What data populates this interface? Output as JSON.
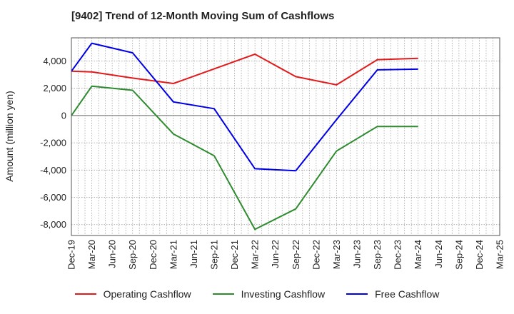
{
  "chart_data": {
    "type": "line",
    "title": "[9402]  Trend of 12-Month Moving Sum of Cashflows",
    "ylabel": "Amount (million yen)",
    "xlabel": "",
    "ylim": [
      -8800,
      5700
    ],
    "yticks": [
      -8000,
      -6000,
      -4000,
      -2000,
      0,
      2000,
      4000
    ],
    "ytick_labels": [
      "-8,000",
      "-6,000",
      "-4,000",
      "-2,000",
      "0",
      "2,000",
      "4,000"
    ],
    "categories": [
      "Dec-19",
      "Mar-20",
      "Jun-20",
      "Sep-20",
      "Dec-20",
      "Mar-21",
      "Jun-21",
      "Sep-21",
      "Dec-21",
      "Mar-22",
      "Jun-22",
      "Sep-22",
      "Dec-22",
      "Mar-23",
      "Jun-23",
      "Sep-23",
      "Dec-23",
      "Mar-24",
      "Jun-24",
      "Sep-24",
      "Dec-24",
      "Mar-25"
    ],
    "grid": true,
    "legend_position": "bottom",
    "series": [
      {
        "name": "Operating Cashflow",
        "color": "#e31a1c",
        "points": [
          [
            0,
            3250
          ],
          [
            1,
            3200
          ],
          [
            3,
            2750
          ],
          [
            5,
            2350
          ],
          [
            9,
            4500
          ],
          [
            11,
            2850
          ],
          [
            13,
            2250
          ],
          [
            15,
            4100
          ],
          [
            17,
            4200
          ]
        ]
      },
      {
        "name": "Investing Cashflow",
        "color": "#2e8b2e",
        "points": [
          [
            0,
            0
          ],
          [
            1,
            2150
          ],
          [
            3,
            1850
          ],
          [
            5,
            -1350
          ],
          [
            7,
            -2950
          ],
          [
            9,
            -8350
          ],
          [
            11,
            -6850
          ],
          [
            13,
            -2600
          ],
          [
            15,
            -800
          ],
          [
            17,
            -800
          ]
        ]
      },
      {
        "name": "Free Cashflow",
        "color": "#0000e6",
        "points": [
          [
            0,
            3250
          ],
          [
            1,
            5300
          ],
          [
            3,
            4600
          ],
          [
            5,
            1000
          ],
          [
            7,
            500
          ],
          [
            9,
            -3900
          ],
          [
            11,
            -4050
          ],
          [
            13,
            -300
          ],
          [
            15,
            3350
          ],
          [
            17,
            3400
          ]
        ]
      }
    ]
  }
}
